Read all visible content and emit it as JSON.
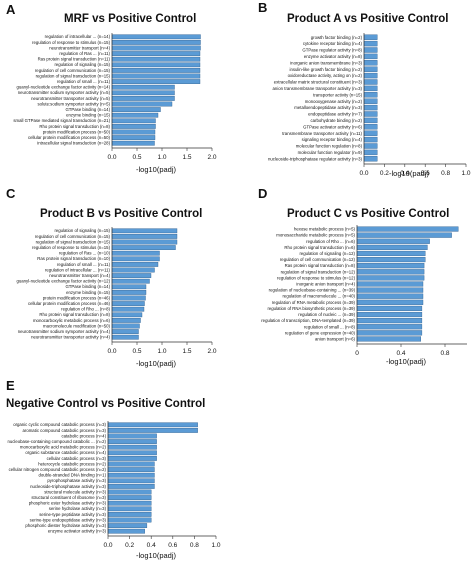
{
  "panels": [
    {
      "letter": "A",
      "title": "MRF vs Positive Control",
      "xlabel": "-log10(padj)",
      "ticks": [
        "0.0",
        "0.5",
        "1.0",
        "1.5",
        "2.0"
      ],
      "tick_values": [
        0,
        0.5,
        1.0,
        1.5,
        2.0
      ],
      "xlim": [
        0,
        2.0
      ]
    },
    {
      "letter": "B",
      "title": "Product A vs Positive Control",
      "xlabel": "-log10(padj)",
      "ticks": [
        "0.0",
        "0.2",
        "0.4",
        "0.6",
        "0.8",
        "1.0"
      ],
      "tick_values": [
        0,
        0.2,
        0.4,
        0.6,
        0.8,
        1.0
      ],
      "xlim": [
        0,
        1.0
      ]
    },
    {
      "letter": "C",
      "title": "Product B vs Positive Control",
      "xlabel": "-log10(padj)",
      "ticks": [
        "0.0",
        "0.5",
        "1.0",
        "1.5",
        "2.0"
      ],
      "tick_values": [
        0,
        0.5,
        1.0,
        1.5,
        2.0
      ],
      "xlim": [
        0,
        2.0
      ]
    },
    {
      "letter": "D",
      "title": "Product C vs Positive Control",
      "xlabel": "-log10(padj)",
      "ticks": [
        "0",
        "0.4",
        "0.8"
      ],
      "tick_values": [
        0,
        0.4,
        0.8
      ],
      "xlim": [
        0,
        1.0
      ]
    },
    {
      "letter": "E",
      "title": "Negative Control vs Positive Control",
      "xlabel": "-log10(padj)",
      "ticks": [
        "0.0",
        "0.2",
        "0.4",
        "0.6",
        "0.8",
        "1.0"
      ],
      "tick_values": [
        0,
        0.2,
        0.4,
        0.6,
        0.8,
        1.0
      ],
      "xlim": [
        0,
        1.0
      ]
    }
  ],
  "colors": {
    "bar_fill": "#5b9bd5",
    "bar_stroke": "#2f5f8f",
    "axis": "#333333"
  },
  "chart_data": [
    {
      "type": "bar",
      "orientation": "horizontal",
      "title": "MRF vs Positive Control",
      "xlabel": "-log10(padj)",
      "xlim": [
        0,
        2.0
      ],
      "categories": [
        "regulation of intracellular ... (n=14)",
        "regulation of response to stimulus (n=15)",
        "neurotransmitter transport (n=4)",
        "regulation of Ras ... (n=11)",
        "Ras protein signal transduction (n=11)",
        "regulation of signaling (n=15)",
        "regulation of cell communication (n=15)",
        "regulation of signal transduction (n=15)",
        "regulation of small ... (n=11)",
        "guanyl-nucleotide exchange factor activity (n=14)",
        "neurotransmitter sodium symporter activity (n=5)",
        "neurotransmitter transporter activity (n=5)",
        "solute:sodium symporter activity (n=5)",
        "GTPase binding (n=14)",
        "enzyme binding (n=15)",
        "small GTPase mediated signal transduction (n=21)",
        "Rho protein signal transduction (n=8)",
        "protein modification process (n=50)",
        "cellular protein modification process (n=50)",
        "intracellular signal transduction (n=28)"
      ],
      "values": [
        1.77,
        1.77,
        1.77,
        1.76,
        1.76,
        1.76,
        1.76,
        1.76,
        1.76,
        1.25,
        1.25,
        1.25,
        1.2,
        0.97,
        0.92,
        0.87,
        0.87,
        0.86,
        0.86,
        0.85
      ]
    },
    {
      "type": "bar",
      "orientation": "horizontal",
      "title": "Product A vs Positive Control",
      "xlabel": "-log10(padj)",
      "xlim": [
        0,
        1.0
      ],
      "categories": [
        "growth factor binding (n=2)",
        "cytokine receptor binding (n=4)",
        "GTPase regulator activity (n=8)",
        "enzyme activator activity (n=8)",
        "inorganic anion transmembrane (n=3)",
        "insulin-like growth factor binding (n=2)",
        "oxidoreductase activity, acting on (n=2)",
        "extracellular matrix structural constituent (n=3)",
        "anion transmembrane transporter activity (n=3)",
        "transporter activity (n=15)",
        "monooxygenase activity (n=2)",
        "metalloendopeptidase activity (n=3)",
        "endopeptidase activity (n=7)",
        "carbohydrate binding (n=2)",
        "GTPase activator activity (n=6)",
        "transmembrane transporter activity (n=11)",
        "signaling receptor binding (n=4)",
        "molecular function regulation (n=8)",
        "molecular function regulator (n=9)",
        "nucleoside-triphosphatase regulator activity (n=3)"
      ],
      "values": [
        0.13,
        0.13,
        0.13,
        0.13,
        0.13,
        0.13,
        0.13,
        0.13,
        0.13,
        0.13,
        0.13,
        0.13,
        0.13,
        0.13,
        0.13,
        0.13,
        0.13,
        0.13,
        0.13,
        0.13
      ]
    },
    {
      "type": "bar",
      "orientation": "horizontal",
      "title": "Product B vs Positive Control",
      "xlabel": "-log10(padj)",
      "xlim": [
        0,
        2.0
      ],
      "categories": [
        "regulation of signaling (n=15)",
        "regulation of cell communication (n=15)",
        "regulation of signal transduction (n=15)",
        "regulation of response to stimulus (n=15)",
        "regulation of Ras ... (n=10)",
        "Ras protein signal transduction (n=10)",
        "regulation of small ... (n=11)",
        "regulation of intracellular ... (n=11)",
        "neurotransmitter transport (n=4)",
        "guanyl-nucleotide exchange factor activity (n=12)",
        "GTPase binding (n=14)",
        "enzyme binding (n=15)",
        "protein modification process (n=46)",
        "cellular protein modification process (n=46)",
        "regulation of Rho ... (n=8)",
        "Rho protein signal transduction (n=8)",
        "monocarboxylic metabolic process (n=6)",
        "macromolecule modification (n=50)",
        "neurotransmitter sodium symporter activity (n=4)",
        "neurotransmitter transporter activity (n=4)"
      ],
      "values": [
        1.3,
        1.3,
        1.3,
        1.27,
        0.95,
        0.95,
        0.92,
        0.85,
        0.78,
        0.75,
        0.68,
        0.68,
        0.67,
        0.65,
        0.64,
        0.6,
        0.57,
        0.55,
        0.53,
        0.53
      ]
    },
    {
      "type": "bar",
      "orientation": "horizontal",
      "title": "Product C vs Positive Control",
      "xlabel": "-log10(padj)",
      "xlim": [
        0,
        1.0
      ],
      "categories": [
        "hexose metabolic process (n=5)",
        "monosaccharide metabolic process (n=5)",
        "regulation of Rho ... (n=6)",
        "Rho protein signal transduction (n=6)",
        "regulation of signaling (n=12)",
        "regulation of cell communication (n=12)",
        "Ras protein signal transduction (n=8)",
        "regulation of signal transduction (n=12)",
        "regulation of response to stimulus (n=12)",
        "inorganic anion transport (n=4)",
        "regulation of nucleobase-containing ... (n=39)",
        "regulation of macromolecule ... (n=40)",
        "regulation of RNA metabolic process (n=39)",
        "regulation of RNA biosynthetic process (n=39)",
        "regulation of nucleic ... (n=39)",
        "regulation of transcription, DNA-templated (n=39)",
        "regulation of small ... (n=8)",
        "regulation of gene expression (n=40)",
        "anion transport (n=6)"
      ],
      "values": [
        0.92,
        0.86,
        0.66,
        0.64,
        0.62,
        0.62,
        0.61,
        0.61,
        0.61,
        0.6,
        0.6,
        0.6,
        0.6,
        0.59,
        0.59,
        0.59,
        0.59,
        0.59,
        0.58
      ]
    },
    {
      "type": "bar",
      "orientation": "horizontal",
      "title": "Negative Control vs Positive Control",
      "xlabel": "-log10(padj)",
      "xlim": [
        0,
        1.0
      ],
      "categories": [
        "organic cyclic compound catabolic process (n=3)",
        "aromatic compound catabolic process (n=3)",
        "catabolic process (n=4)",
        "nucleobase-containing compound catabolic ... (n=2)",
        "monocarboxylic acid metabolic process (n=2)",
        "organic substance catabolic process (n=4)",
        "cellular catabolic process (n=3)",
        "heterocycle catabolic process (n=2)",
        "cellular nitrogen compound catabolic process (n=2)",
        "double-stranded DNA binding (n=1)",
        "pyrophosphatase activity (n=3)",
        "nucleoside-triphosphatase activity (n=3)",
        "structural molecule activity (n=3)",
        "structural constituent of ribosome (n=3)",
        "phosphoric ester hydrolase activity (n=3)",
        "serine hydrolase activity (n=3)",
        "serine-type peptidase activity (n=3)",
        "serine-type endopeptidase activity (n=3)",
        "phosphoric diester hydrolase activity (n=3)",
        "enzyme activator activity (n=3)"
      ],
      "values": [
        0.83,
        0.83,
        0.45,
        0.45,
        0.45,
        0.45,
        0.45,
        0.43,
        0.43,
        0.43,
        0.43,
        0.43,
        0.4,
        0.4,
        0.4,
        0.4,
        0.4,
        0.4,
        0.36,
        0.34
      ]
    }
  ]
}
